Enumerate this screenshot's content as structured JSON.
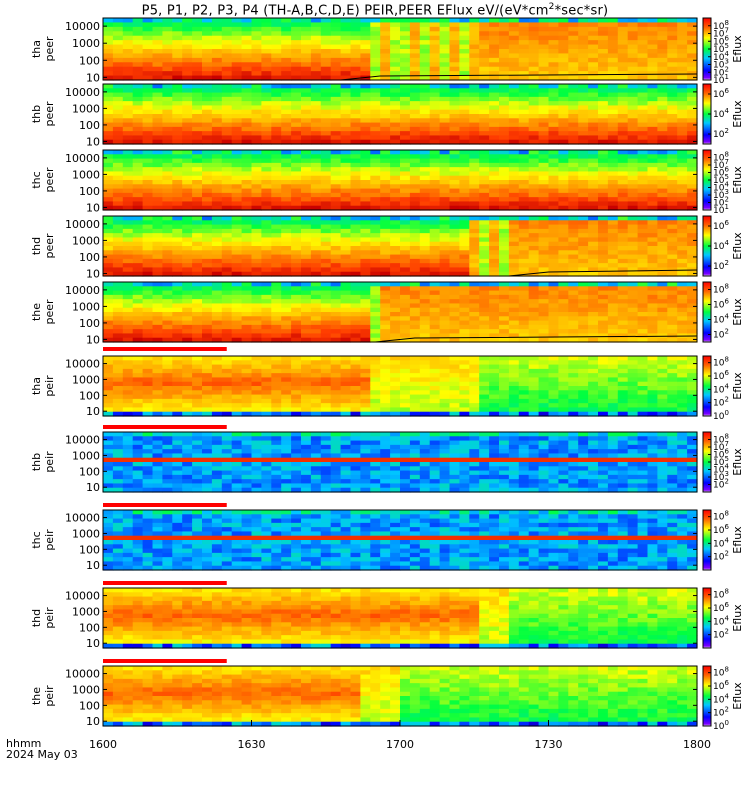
{
  "title": {
    "prefix": "P5, P1, P2, P3, P4 (TH-A,B,C,D,E) PEIR,PEER EFlux eV/(eV*cm",
    "sup": "2",
    "suffix": "*sec*sr)"
  },
  "time_axis": {
    "ticks": [
      "1600",
      "1630",
      "1700",
      "1730",
      "1800"
    ],
    "tick_minutes": [
      0,
      30,
      60,
      90,
      120
    ],
    "range_minutes": [
      0,
      120
    ],
    "label_line1": "hhmm",
    "label_line2": "2024 May 03"
  },
  "colorbar_label": "Eflux",
  "chart_data": [
    {
      "type": "heatmap",
      "probe": "tha",
      "species": "peer",
      "ylabel": [
        "tha",
        "peer"
      ],
      "yticks": [
        "10000",
        "1000",
        "100",
        "10"
      ],
      "ylim": [
        7,
        30000
      ],
      "yscale": "log",
      "colorbar_ticks": [
        "10^8",
        "10^7",
        "10^6",
        "10^5",
        "10^4",
        "10^3",
        "10^2",
        "10^1"
      ],
      "colorbar_range": [
        1,
        9
      ],
      "low_band_end_minutes": 23,
      "transition_minutes": [
        55,
        62
      ],
      "high_region_start_minutes": 76,
      "scpot_start_minutes": 48
    },
    {
      "type": "heatmap",
      "probe": "thb",
      "species": "peer",
      "ylabel": [
        "thb",
        "peer"
      ],
      "yticks": [
        "10000",
        "1000",
        "100",
        "10"
      ],
      "ylim": [
        7,
        30000
      ],
      "yscale": "log",
      "colorbar_ticks": [
        "10^6",
        "10^4",
        "10^2"
      ],
      "colorbar_range": [
        1,
        7
      ]
    },
    {
      "type": "heatmap",
      "probe": "thc",
      "species": "peer",
      "ylabel": [
        "thc",
        "peer"
      ],
      "yticks": [
        "10000",
        "1000",
        "100",
        "10"
      ],
      "ylim": [
        7,
        30000
      ],
      "yscale": "log",
      "colorbar_ticks": [
        "10^8",
        "10^7",
        "10^6",
        "10^5",
        "10^4",
        "10^3",
        "10^2",
        "10^1"
      ],
      "colorbar_range": [
        1,
        9
      ]
    },
    {
      "type": "heatmap",
      "probe": "thd",
      "species": "peer",
      "ylabel": [
        "thd",
        "peer"
      ],
      "yticks": [
        "10000",
        "1000",
        "100",
        "10"
      ],
      "ylim": [
        7,
        30000
      ],
      "yscale": "log",
      "colorbar_ticks": [
        "10^6",
        "10^4",
        "10^2"
      ],
      "colorbar_range": [
        1,
        7
      ],
      "transition_minutes": [
        75,
        82
      ],
      "high_region_start_minutes": 82,
      "scpot_start_minutes": 82
    },
    {
      "type": "heatmap",
      "probe": "the",
      "species": "peer",
      "ylabel": [
        "the",
        "peer"
      ],
      "yticks": [
        "10000",
        "1000",
        "100",
        "10"
      ],
      "ylim": [
        7,
        30000
      ],
      "yscale": "log",
      "colorbar_ticks": [
        "10^8",
        "10^6",
        "10^4",
        "10^2"
      ],
      "colorbar_range": [
        1,
        9
      ],
      "transition_minutes": [
        54,
        60
      ],
      "high_region_start_minutes": 56,
      "scpot_start_minutes": 55
    },
    {
      "type": "heatmap",
      "probe": "tha",
      "species": "peir",
      "ylabel": [
        "tha",
        "peir"
      ],
      "yticks": [
        "10000",
        "1000",
        "100",
        "10"
      ],
      "ylim": [
        5,
        30000
      ],
      "yscale": "log",
      "colorbar_ticks": [
        "10^8",
        "10^6",
        "10^4",
        "10^2",
        "10^0"
      ],
      "colorbar_range": [
        0,
        9
      ],
      "transition_minutes": [
        55,
        76
      ],
      "low_region_start_minutes": 76
    },
    {
      "type": "heatmap",
      "probe": "thb",
      "species": "peir",
      "ylabel": [
        "thb",
        "peir"
      ],
      "yticks": [
        "10000",
        "1000",
        "100",
        "10"
      ],
      "ylim": [
        5,
        30000
      ],
      "yscale": "log",
      "colorbar_ticks": [
        "10^8",
        "10^7",
        "10^6",
        "10^5",
        "10^4",
        "10^3",
        "10^2"
      ],
      "colorbar_range": [
        1,
        9
      ],
      "band_energy": 1000
    },
    {
      "type": "heatmap",
      "probe": "thc",
      "species": "peir",
      "ylabel": [
        "thc",
        "peir"
      ],
      "yticks": [
        "10000",
        "1000",
        "100",
        "10"
      ],
      "ylim": [
        5,
        30000
      ],
      "yscale": "log",
      "colorbar_ticks": [
        "10^8",
        "10^6",
        "10^4",
        "10^2"
      ],
      "colorbar_range": [
        0,
        9
      ],
      "band_energy": 1000
    },
    {
      "type": "heatmap",
      "probe": "thd",
      "species": "peir",
      "ylabel": [
        "thd",
        "peir"
      ],
      "yticks": [
        "10000",
        "1000",
        "100",
        "10"
      ],
      "ylim": [
        5,
        30000
      ],
      "yscale": "log",
      "colorbar_ticks": [
        "10^8",
        "10^6",
        "10^4",
        "10^2"
      ],
      "colorbar_range": [
        0,
        9
      ],
      "transition_minutes": [
        76,
        82
      ],
      "low_region_start_minutes": 82
    },
    {
      "type": "heatmap",
      "probe": "the",
      "species": "peir",
      "ylabel": [
        "the",
        "peir"
      ],
      "yticks": [
        "10000",
        "1000",
        "100",
        "10"
      ],
      "ylim": [
        5,
        30000
      ],
      "yscale": "log",
      "colorbar_ticks": [
        "10^8",
        "10^6",
        "10^4",
        "10^2",
        "10^0"
      ],
      "colorbar_range": [
        0,
        9
      ],
      "transition_minutes": [
        52,
        60
      ],
      "low_region_start_minutes": 60
    }
  ]
}
